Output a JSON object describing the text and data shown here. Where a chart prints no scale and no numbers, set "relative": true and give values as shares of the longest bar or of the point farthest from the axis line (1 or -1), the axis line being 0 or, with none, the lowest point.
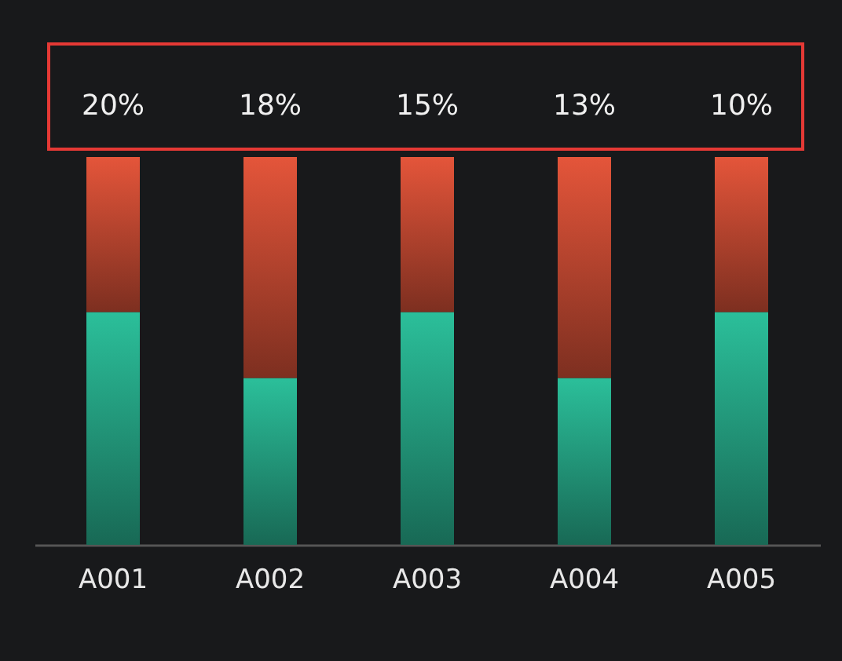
{
  "chart_data": {
    "type": "bar",
    "stacked": true,
    "relative": true,
    "grid": false,
    "categories": [
      "A001",
      "A002",
      "A003",
      "A004",
      "A005"
    ],
    "series": [
      {
        "color": "#2bbf9a",
        "values": [
          0.6,
          0.43,
          0.6,
          0.43,
          0.6
        ]
      },
      {
        "color": "#e4553a",
        "values": [
          0.4,
          0.57,
          0.4,
          0.57,
          0.4
        ]
      }
    ],
    "annotations": [
      {
        "text": "20%",
        "x": "A001",
        "y": 1
      },
      {
        "text": "18%",
        "x": "A002",
        "y": 1
      },
      {
        "text": "15%",
        "x": "A003",
        "y": 1
      },
      {
        "text": "13%",
        "x": "A004",
        "y": 1
      },
      {
        "text": "10%",
        "x": "A005",
        "y": 1
      }
    ]
  }
}
